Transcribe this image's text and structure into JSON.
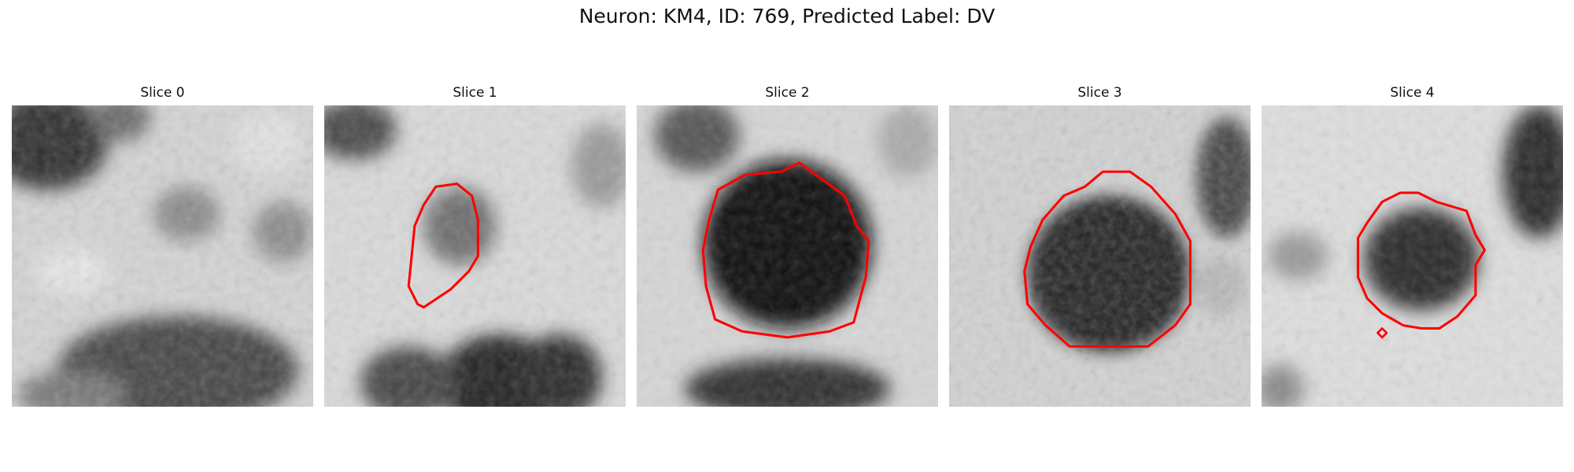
{
  "figure": {
    "title": "Neuron: KM4, ID: 769, Predicted Label: DV",
    "contour_color": "#ff0000",
    "colormap": "grayscale"
  },
  "slices": [
    {
      "title": "Slice 0"
    },
    {
      "title": "Slice 1"
    },
    {
      "title": "Slice 2"
    },
    {
      "title": "Slice 3"
    },
    {
      "title": "Slice 4"
    }
  ]
}
